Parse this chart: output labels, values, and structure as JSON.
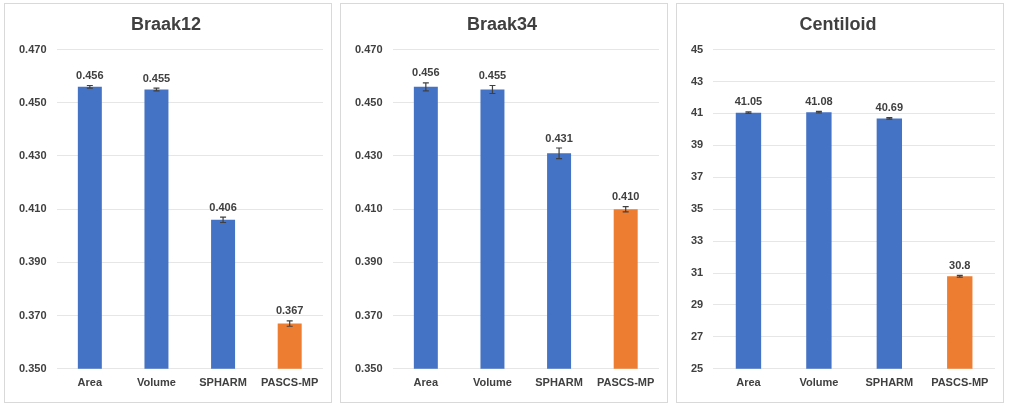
{
  "chart_data": [
    {
      "type": "bar",
      "title": "Braak12",
      "categories": [
        "Area",
        "Volume",
        "SPHARM",
        "PASCS-MP"
      ],
      "values": [
        0.456,
        0.455,
        0.406,
        0.367
      ],
      "colors": [
        "#4472c4",
        "#4472c4",
        "#4472c4",
        "#ed7d31"
      ],
      "errors": [
        0.0005,
        0.0005,
        0.001,
        0.001
      ],
      "value_labels": [
        "0.456",
        "0.455",
        "0.406",
        "0.367"
      ],
      "ylim": [
        0.35,
        0.47
      ],
      "yticks": [
        {
          "value": 0.35,
          "label": "0.350"
        },
        {
          "value": 0.37,
          "label": "0.370"
        },
        {
          "value": 0.39,
          "label": "0.390"
        },
        {
          "value": 0.41,
          "label": "0.410"
        },
        {
          "value": 0.43,
          "label": "0.430"
        },
        {
          "value": 0.45,
          "label": "0.450"
        },
        {
          "value": 0.47,
          "label": "0.470"
        }
      ],
      "grid": "y",
      "legend": false
    },
    {
      "type": "bar",
      "title": "Braak34",
      "categories": [
        "Area",
        "Volume",
        "SPHARM",
        "PASCS-MP"
      ],
      "values": [
        0.456,
        0.455,
        0.431,
        0.41
      ],
      "colors": [
        "#4472c4",
        "#4472c4",
        "#4472c4",
        "#ed7d31"
      ],
      "errors": [
        0.0015,
        0.0015,
        0.002,
        0.001
      ],
      "value_labels": [
        "0.456",
        "0.455",
        "0.431",
        "0.410"
      ],
      "ylim": [
        0.35,
        0.47
      ],
      "yticks": [
        {
          "value": 0.35,
          "label": "0.350"
        },
        {
          "value": 0.37,
          "label": "0.370"
        },
        {
          "value": 0.39,
          "label": "0.390"
        },
        {
          "value": 0.41,
          "label": "0.410"
        },
        {
          "value": 0.43,
          "label": "0.430"
        },
        {
          "value": 0.45,
          "label": "0.450"
        },
        {
          "value": 0.47,
          "label": "0.470"
        }
      ],
      "grid": "y",
      "legend": false
    },
    {
      "type": "bar",
      "title": "Centiloid",
      "categories": [
        "Area",
        "Volume",
        "SPHARM",
        "PASCS-MP"
      ],
      "values": [
        41.05,
        41.08,
        40.69,
        30.8
      ],
      "colors": [
        "#4472c4",
        "#4472c4",
        "#4472c4",
        "#ed7d31"
      ],
      "errors": [
        0.05,
        0.05,
        0.05,
        0.05
      ],
      "value_labels": [
        "41.05",
        "41.08",
        "40.69",
        "30.8"
      ],
      "ylim": [
        25,
        45
      ],
      "yticks": [
        25,
        27,
        29,
        31,
        33,
        35,
        37,
        39,
        41,
        43,
        45
      ],
      "grid": "y",
      "legend": false
    }
  ]
}
